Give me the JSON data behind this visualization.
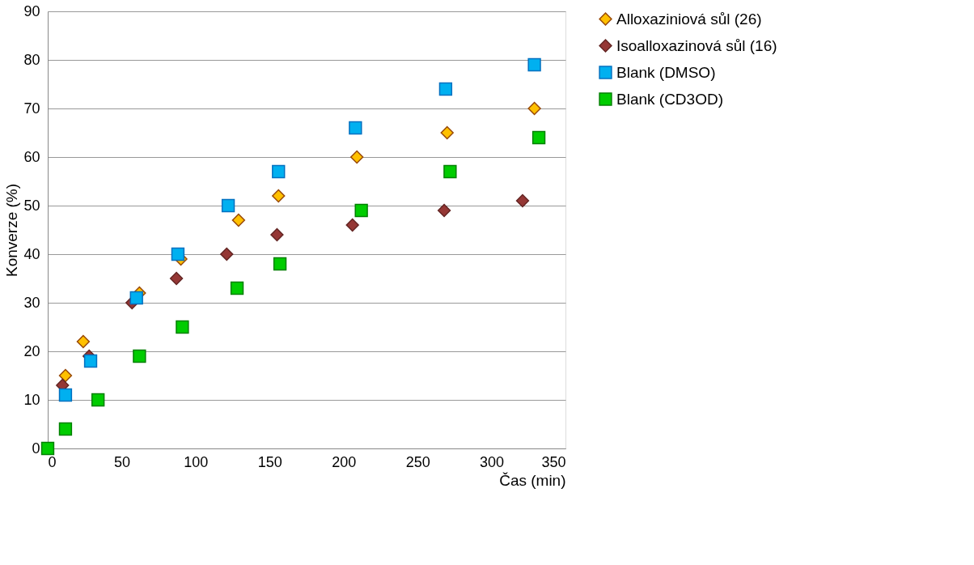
{
  "chart_data": {
    "type": "scatter",
    "xlabel": "Čas (min)",
    "ylabel": "Konverze (%)",
    "xlim": [
      0,
      350
    ],
    "ylim": [
      0,
      90
    ],
    "xticks": [
      0,
      50,
      100,
      150,
      200,
      250,
      300,
      350
    ],
    "yticks": [
      0,
      10,
      20,
      30,
      40,
      50,
      60,
      70,
      80,
      90
    ],
    "grid": "y",
    "legend": "right",
    "series": [
      {
        "name": "Alloxaziniová sůl (26)",
        "color": "#ffc000",
        "marker": "diamond",
        "x": [
          12,
          24,
          62,
          90,
          129,
          156,
          209,
          270,
          329
        ],
        "values": [
          15,
          22,
          32,
          39,
          47,
          52,
          60,
          65,
          70
        ]
      },
      {
        "name": "Isoalloxazinová sůl (16)",
        "color": "#953735",
        "marker": "diamond",
        "x": [
          10,
          28,
          57,
          87,
          121,
          155,
          206,
          268,
          321
        ],
        "values": [
          13,
          19,
          30,
          35,
          40,
          44,
          46,
          49,
          51
        ]
      },
      {
        "name": "Blank (DMSO)",
        "color": "#00b0f0",
        "marker": "square",
        "x": [
          12,
          29,
          60,
          88,
          122,
          156,
          208,
          269,
          329
        ],
        "values": [
          11,
          18,
          31,
          40,
          50,
          57,
          66,
          74,
          79
        ]
      },
      {
        "name": "Blank (CD3OD)",
        "color": "#00cc00",
        "marker": "square",
        "x": [
          0,
          12,
          34,
          62,
          91,
          128,
          157,
          212,
          272,
          332
        ],
        "values": [
          0,
          4,
          10,
          19,
          25,
          33,
          38,
          49,
          57,
          64
        ]
      }
    ]
  }
}
